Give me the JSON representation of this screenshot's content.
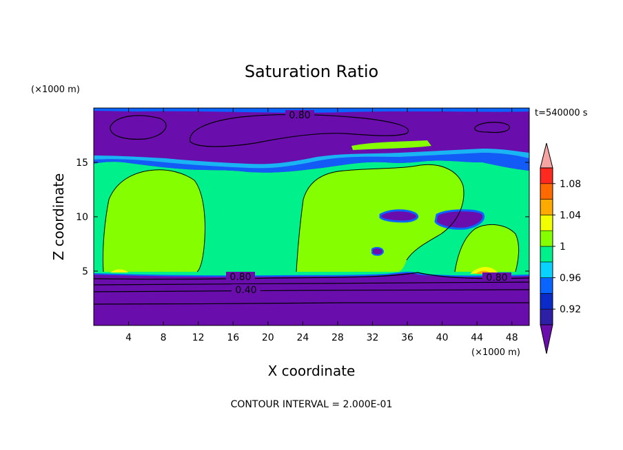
{
  "chart_data": {
    "type": "heatmap",
    "title": "Saturation Ratio",
    "xlabel": "X coordinate",
    "ylabel": "Z coordinate",
    "x_unit": "(×1000 m)",
    "y_unit": "(×1000 m)",
    "time_label": "t=540000 s",
    "footer": "CONTOUR INTERVAL = 2.000E-01",
    "xlim": [
      0,
      50
    ],
    "ylim": [
      0,
      20
    ],
    "x_ticks": [
      4,
      8,
      12,
      16,
      20,
      24,
      28,
      32,
      36,
      40,
      44,
      48
    ],
    "y_ticks": [
      5,
      10,
      15
    ],
    "contour_labels": [
      "0.80",
      "0.80",
      "0.80",
      "0.40"
    ],
    "colorbar": {
      "tick_labels": [
        "1.08",
        "1.04",
        "1",
        "0.96",
        "0.92"
      ],
      "tick_values": [
        1.08,
        1.04,
        1.0,
        0.96,
        0.92
      ],
      "levels": [
        0.9,
        0.92,
        0.94,
        0.96,
        0.98,
        1.0,
        1.02,
        1.04,
        1.06,
        1.08,
        1.1
      ],
      "colors": [
        "#6a0dad",
        "#2d1fa6",
        "#0b2bc8",
        "#0a64ff",
        "#0ad2ff",
        "#00f08c",
        "#85ff00",
        "#f2ff00",
        "#ffaa00",
        "#ff6a00",
        "#ff2a1f",
        "#f5a3a3"
      ],
      "extend": "both"
    }
  }
}
